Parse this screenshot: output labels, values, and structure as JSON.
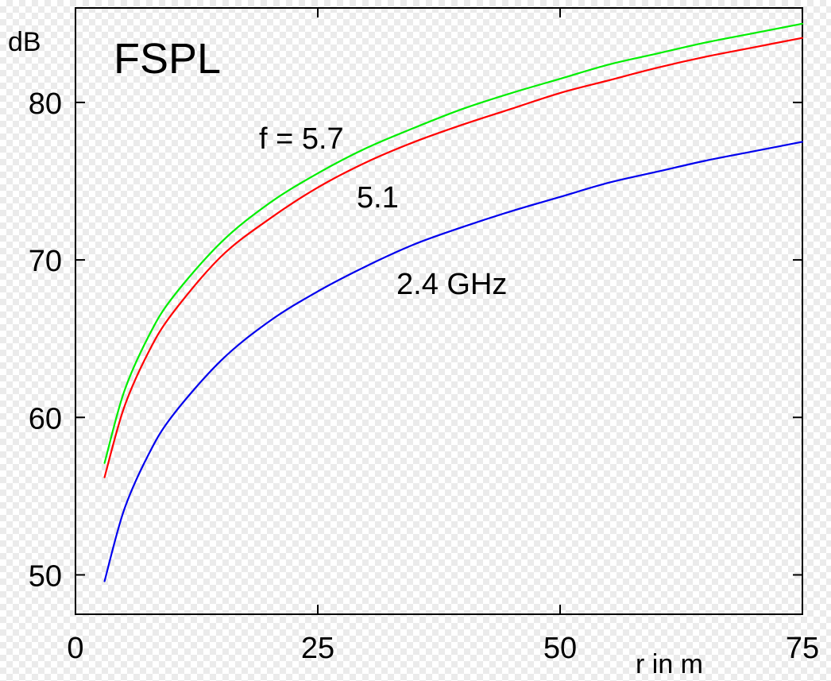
{
  "chart_data": {
    "type": "line",
    "title": "FSPL",
    "xlabel": "r in m",
    "ylabel": "dB",
    "xlim": [
      0,
      75
    ],
    "ylim": [
      47.5,
      86
    ],
    "xticks": [
      0,
      25,
      50,
      75
    ],
    "yticks": [
      50,
      60,
      70,
      80
    ],
    "grid": false,
    "series": [
      {
        "name": "f = 5.7",
        "color": "#00ee00",
        "x": [
          3,
          5,
          7.5,
          10,
          15,
          20,
          25,
          30,
          35,
          40,
          45,
          50,
          55,
          60,
          65,
          70,
          75
        ],
        "values": [
          57.1,
          61.6,
          65.1,
          67.6,
          71.1,
          73.6,
          75.5,
          77.1,
          78.4,
          79.6,
          80.6,
          81.5,
          82.4,
          83.1,
          83.8,
          84.4,
          85.0
        ]
      },
      {
        "name": "5.1",
        "color": "#ff0000",
        "x": [
          3,
          5,
          7.5,
          10,
          15,
          20,
          25,
          30,
          35,
          40,
          45,
          50,
          55,
          60,
          65,
          70,
          75
        ],
        "values": [
          56.2,
          60.6,
          64.1,
          66.6,
          70.2,
          72.6,
          74.6,
          76.2,
          77.5,
          78.6,
          79.6,
          80.6,
          81.4,
          82.2,
          82.9,
          83.5,
          84.1
        ]
      },
      {
        "name": "2.4 GHz",
        "color": "#0000ee",
        "x": [
          3,
          5,
          7.5,
          10,
          15,
          20,
          25,
          30,
          35,
          40,
          45,
          50,
          55,
          60,
          65,
          70,
          75
        ],
        "values": [
          49.6,
          54.1,
          57.6,
          60.1,
          63.6,
          66.1,
          68.0,
          69.6,
          71.0,
          72.1,
          73.1,
          74.0,
          74.9,
          75.6,
          76.3,
          76.9,
          77.5
        ]
      }
    ]
  }
}
